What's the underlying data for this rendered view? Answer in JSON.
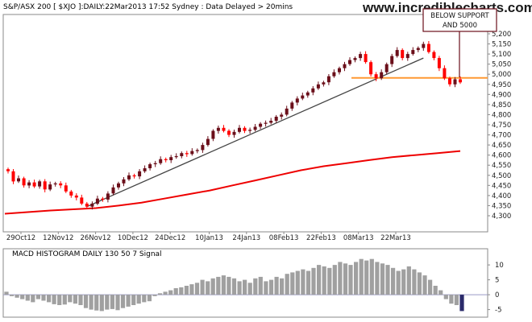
{
  "chart_data": [
    {
      "type": "candlestick",
      "title": "S&P/ASX 200 [ $XJO ]:DAILY:22Mar2013 17:52 Sydney : Data Delayed > 20mins",
      "watermark": "www.incrediblecharts.com",
      "annotation": "BELOW SUPPORT AND 5000",
      "annotation_lines": [
        "BELOW SUPPORT",
        "AND 5000"
      ],
      "x_tick_labels": [
        "29Oct12",
        "12Nov12",
        "26Nov12",
        "10Dec12",
        "24Dec12",
        "10Jan13",
        "24Jan13",
        "08Feb13",
        "22Feb13",
        "08Mar13",
        "22Mar13"
      ],
      "y_tick_labels": [
        "4,300",
        "4,350",
        "4,400",
        "4,450",
        "4,500",
        "4,550",
        "4,600",
        "4,650",
        "4,700",
        "4,750",
        "4,800",
        "4,850",
        "4,900",
        "4,950",
        "5,000",
        "5,050",
        "5,100",
        "5,150",
        "5,200"
      ],
      "ylim": [
        4270,
        5230
      ],
      "up_color": "#6b0f1a",
      "down_color": "#ff0000",
      "closes": [
        4520,
        4470,
        4485,
        4450,
        4465,
        4445,
        4470,
        4430,
        4455,
        4460,
        4450,
        4420,
        4400,
        4390,
        4360,
        4345,
        4360,
        4385,
        4380,
        4410,
        4440,
        4460,
        4480,
        4500,
        4495,
        4520,
        4535,
        4555,
        4560,
        4580,
        4575,
        4590,
        4595,
        4610,
        4605,
        4620,
        4625,
        4650,
        4680,
        4720,
        4735,
        4720,
        4700,
        4715,
        4735,
        4720,
        4725,
        4740,
        4755,
        4760,
        4770,
        4790,
        4800,
        4830,
        4860,
        4880,
        4895,
        4910,
        4930,
        4950,
        4960,
        4990,
        5010,
        5030,
        5050,
        5070,
        5080,
        5100,
        5060,
        5000,
        4980,
        5010,
        5050,
        5090,
        5120,
        5080,
        5100,
        5120,
        5130,
        5150,
        5110,
        5080,
        5030,
        4980,
        4950,
        4975,
        4960
      ],
      "support_level": 4982,
      "series": [
        {
          "name": "",
          "kind": "moving-average",
          "color": "#ee0000",
          "values": [
            4310,
            4318,
            4326,
            4332,
            4338,
            4350,
            4365,
            4385,
            4405,
            4425,
            4450,
            4475,
            4500,
            4525,
            4545,
            4560,
            4575,
            4590,
            4600,
            4610,
            4620
          ]
        },
        {
          "name": "",
          "kind": "trendline",
          "color": "#444444",
          "x_index": [
            15,
            79
          ],
          "values": [
            4345,
            5080
          ]
        },
        {
          "name": "",
          "kind": "support-line",
          "color": "#ff9933",
          "values": [
            4982,
            4982
          ]
        }
      ]
    },
    {
      "type": "histogram",
      "title": "MACD HISTOGRAM DAILY 130 50 7 Signal",
      "y_tick_labels": [
        "10",
        "5",
        "0",
        "-5"
      ],
      "ylim": [
        -7,
        13
      ],
      "color": "#a0a0a0",
      "values": [
        1,
        -0.5,
        -1,
        -1.5,
        -2,
        -2.5,
        -1.5,
        -2,
        -2.5,
        -3.2,
        -3.5,
        -3.3,
        -2.5,
        -3,
        -3.5,
        -4.5,
        -5,
        -5.3,
        -5.5,
        -5,
        -4.8,
        -5.2,
        -4.5,
        -4,
        -3.5,
        -3,
        -2.5,
        -2.2,
        -0.5,
        0.5,
        1,
        1.5,
        2.2,
        2.5,
        3,
        3.5,
        4,
        5,
        4.5,
        5.5,
        6,
        6.5,
        6,
        5.5,
        4.5,
        5,
        4,
        5.5,
        6,
        4.5,
        5,
        6,
        5.5,
        7,
        7.5,
        8,
        8.5,
        8,
        9,
        10,
        9.5,
        9,
        10,
        11,
        10.5,
        10,
        11,
        12,
        11.5,
        12,
        11,
        10.5,
        10,
        9,
        8,
        8.5,
        9.5,
        8.5,
        7.5,
        6.5,
        5,
        3,
        1.5,
        -1.5,
        -3,
        -3.5,
        -5.5
      ]
    }
  ]
}
